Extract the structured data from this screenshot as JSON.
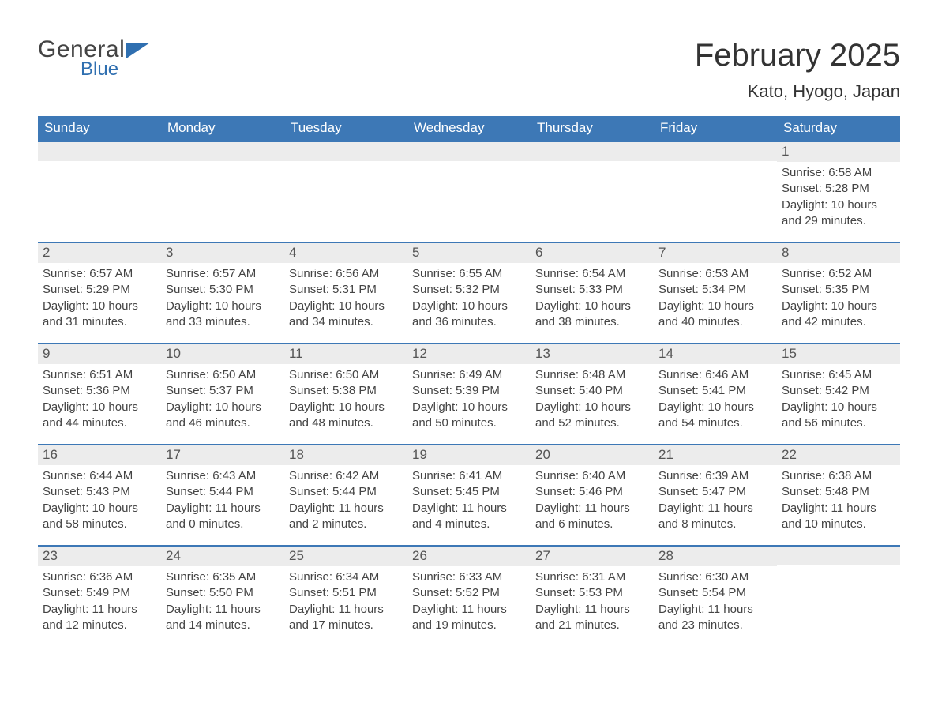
{
  "brand": {
    "word1": "General",
    "word2": "Blue"
  },
  "colors": {
    "header_bg": "#3d78b6",
    "header_text": "#ffffff",
    "daynum_bg": "#ececec",
    "daynum_text": "#555555",
    "body_text": "#444444",
    "rule": "#3d78b6",
    "brand_gray": "#444444",
    "brand_blue": "#2f6fb0",
    "page_bg": "#ffffff"
  },
  "fonts": {
    "month_title_pt": 40,
    "location_pt": 22,
    "dow_pt": 17,
    "daynum_pt": 17,
    "body_pt": 15
  },
  "title": "February 2025",
  "location": "Kato, Hyogo, Japan",
  "dow": [
    "Sunday",
    "Monday",
    "Tuesday",
    "Wednesday",
    "Thursday",
    "Friday",
    "Saturday"
  ],
  "weeks": [
    [
      {
        "empty": true
      },
      {
        "empty": true
      },
      {
        "empty": true
      },
      {
        "empty": true
      },
      {
        "empty": true
      },
      {
        "empty": true
      },
      {
        "n": "1",
        "sunrise": "Sunrise: 6:58 AM",
        "sunset": "Sunset: 5:28 PM",
        "d1": "Daylight: 10 hours",
        "d2": "and 29 minutes."
      }
    ],
    [
      {
        "n": "2",
        "sunrise": "Sunrise: 6:57 AM",
        "sunset": "Sunset: 5:29 PM",
        "d1": "Daylight: 10 hours",
        "d2": "and 31 minutes."
      },
      {
        "n": "3",
        "sunrise": "Sunrise: 6:57 AM",
        "sunset": "Sunset: 5:30 PM",
        "d1": "Daylight: 10 hours",
        "d2": "and 33 minutes."
      },
      {
        "n": "4",
        "sunrise": "Sunrise: 6:56 AM",
        "sunset": "Sunset: 5:31 PM",
        "d1": "Daylight: 10 hours",
        "d2": "and 34 minutes."
      },
      {
        "n": "5",
        "sunrise": "Sunrise: 6:55 AM",
        "sunset": "Sunset: 5:32 PM",
        "d1": "Daylight: 10 hours",
        "d2": "and 36 minutes."
      },
      {
        "n": "6",
        "sunrise": "Sunrise: 6:54 AM",
        "sunset": "Sunset: 5:33 PM",
        "d1": "Daylight: 10 hours",
        "d2": "and 38 minutes."
      },
      {
        "n": "7",
        "sunrise": "Sunrise: 6:53 AM",
        "sunset": "Sunset: 5:34 PM",
        "d1": "Daylight: 10 hours",
        "d2": "and 40 minutes."
      },
      {
        "n": "8",
        "sunrise": "Sunrise: 6:52 AM",
        "sunset": "Sunset: 5:35 PM",
        "d1": "Daylight: 10 hours",
        "d2": "and 42 minutes."
      }
    ],
    [
      {
        "n": "9",
        "sunrise": "Sunrise: 6:51 AM",
        "sunset": "Sunset: 5:36 PM",
        "d1": "Daylight: 10 hours",
        "d2": "and 44 minutes."
      },
      {
        "n": "10",
        "sunrise": "Sunrise: 6:50 AM",
        "sunset": "Sunset: 5:37 PM",
        "d1": "Daylight: 10 hours",
        "d2": "and 46 minutes."
      },
      {
        "n": "11",
        "sunrise": "Sunrise: 6:50 AM",
        "sunset": "Sunset: 5:38 PM",
        "d1": "Daylight: 10 hours",
        "d2": "and 48 minutes."
      },
      {
        "n": "12",
        "sunrise": "Sunrise: 6:49 AM",
        "sunset": "Sunset: 5:39 PM",
        "d1": "Daylight: 10 hours",
        "d2": "and 50 minutes."
      },
      {
        "n": "13",
        "sunrise": "Sunrise: 6:48 AM",
        "sunset": "Sunset: 5:40 PM",
        "d1": "Daylight: 10 hours",
        "d2": "and 52 minutes."
      },
      {
        "n": "14",
        "sunrise": "Sunrise: 6:46 AM",
        "sunset": "Sunset: 5:41 PM",
        "d1": "Daylight: 10 hours",
        "d2": "and 54 minutes."
      },
      {
        "n": "15",
        "sunrise": "Sunrise: 6:45 AM",
        "sunset": "Sunset: 5:42 PM",
        "d1": "Daylight: 10 hours",
        "d2": "and 56 minutes."
      }
    ],
    [
      {
        "n": "16",
        "sunrise": "Sunrise: 6:44 AM",
        "sunset": "Sunset: 5:43 PM",
        "d1": "Daylight: 10 hours",
        "d2": "and 58 minutes."
      },
      {
        "n": "17",
        "sunrise": "Sunrise: 6:43 AM",
        "sunset": "Sunset: 5:44 PM",
        "d1": "Daylight: 11 hours",
        "d2": "and 0 minutes."
      },
      {
        "n": "18",
        "sunrise": "Sunrise: 6:42 AM",
        "sunset": "Sunset: 5:44 PM",
        "d1": "Daylight: 11 hours",
        "d2": "and 2 minutes."
      },
      {
        "n": "19",
        "sunrise": "Sunrise: 6:41 AM",
        "sunset": "Sunset: 5:45 PM",
        "d1": "Daylight: 11 hours",
        "d2": "and 4 minutes."
      },
      {
        "n": "20",
        "sunrise": "Sunrise: 6:40 AM",
        "sunset": "Sunset: 5:46 PM",
        "d1": "Daylight: 11 hours",
        "d2": "and 6 minutes."
      },
      {
        "n": "21",
        "sunrise": "Sunrise: 6:39 AM",
        "sunset": "Sunset: 5:47 PM",
        "d1": "Daylight: 11 hours",
        "d2": "and 8 minutes."
      },
      {
        "n": "22",
        "sunrise": "Sunrise: 6:38 AM",
        "sunset": "Sunset: 5:48 PM",
        "d1": "Daylight: 11 hours",
        "d2": "and 10 minutes."
      }
    ],
    [
      {
        "n": "23",
        "sunrise": "Sunrise: 6:36 AM",
        "sunset": "Sunset: 5:49 PM",
        "d1": "Daylight: 11 hours",
        "d2": "and 12 minutes."
      },
      {
        "n": "24",
        "sunrise": "Sunrise: 6:35 AM",
        "sunset": "Sunset: 5:50 PM",
        "d1": "Daylight: 11 hours",
        "d2": "and 14 minutes."
      },
      {
        "n": "25",
        "sunrise": "Sunrise: 6:34 AM",
        "sunset": "Sunset: 5:51 PM",
        "d1": "Daylight: 11 hours",
        "d2": "and 17 minutes."
      },
      {
        "n": "26",
        "sunrise": "Sunrise: 6:33 AM",
        "sunset": "Sunset: 5:52 PM",
        "d1": "Daylight: 11 hours",
        "d2": "and 19 minutes."
      },
      {
        "n": "27",
        "sunrise": "Sunrise: 6:31 AM",
        "sunset": "Sunset: 5:53 PM",
        "d1": "Daylight: 11 hours",
        "d2": "and 21 minutes."
      },
      {
        "n": "28",
        "sunrise": "Sunrise: 6:30 AM",
        "sunset": "Sunset: 5:54 PM",
        "d1": "Daylight: 11 hours",
        "d2": "and 23 minutes."
      },
      {
        "empty": true
      }
    ]
  ]
}
